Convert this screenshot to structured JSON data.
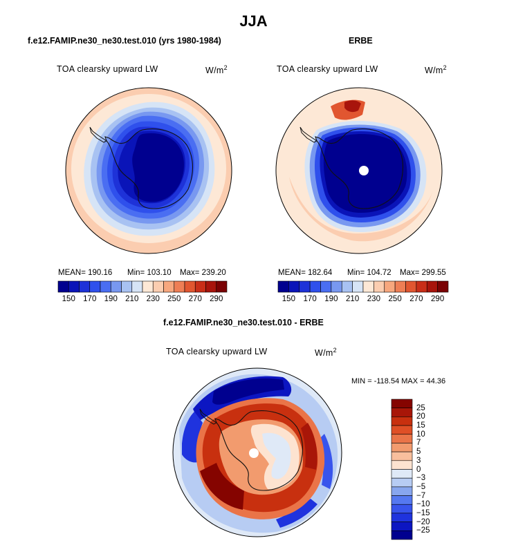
{
  "figure_title": "JJA",
  "variable_label": "TOA clearsky upward LW",
  "units_label": "W/m",
  "units_exponent": "2",
  "colors": {
    "abs_scale": [
      "#00008f",
      "#0a14b8",
      "#1e32d8",
      "#2f50ec",
      "#4a6ef2",
      "#7898f0",
      "#a8c2f2",
      "#d6e4f6",
      "#fde8d6",
      "#fbcdb0",
      "#f7a77e",
      "#ee7e55",
      "#e15630",
      "#c92e18",
      "#a8140c",
      "#7a0204"
    ],
    "diff_scale": [
      "#00008f",
      "#0c16c2",
      "#1f33de",
      "#3854ec",
      "#5578f0",
      "#88a6ee",
      "#b7ccf3",
      "#dfe9f7",
      "#fde3d0",
      "#f8bf9d",
      "#f29b6e",
      "#ea7448",
      "#df4f26",
      "#c8300f",
      "#a81608",
      "#850400"
    ],
    "land_white": "#ffffff",
    "coast": "#111111"
  },
  "chart_data": [
    {
      "type": "heatmap",
      "projection": "south-polar-stereographic",
      "title": "f.e12.FAMIP.ne30_ne30.test.010 (yrs 1980-1984)",
      "variable": "TOA clearsky upward LW",
      "units": "W/m^2",
      "stats": {
        "mean": "190.16",
        "min": "103.10",
        "max": "239.20"
      },
      "stats_text": {
        "mean": "MEAN= 190.16",
        "min": "Min= 103.10",
        "max": "Max= 239.20"
      },
      "colorbar_ticks": [
        "150",
        "170",
        "190",
        "210",
        "230",
        "250",
        "270",
        "290"
      ],
      "colorbar_range": [
        140,
        300
      ],
      "colorbar_step": 10
    },
    {
      "type": "heatmap",
      "projection": "south-polar-stereographic",
      "title": "ERBE",
      "variable": "TOA clearsky upward LW",
      "units": "W/m^2",
      "stats": {
        "mean": "182.64",
        "min": "104.72",
        "max": "299.55"
      },
      "stats_text": {
        "mean": "MEAN= 182.64",
        "min": "Min= 104.72",
        "max": "Max= 299.55"
      },
      "colorbar_ticks": [
        "150",
        "170",
        "190",
        "210",
        "230",
        "250",
        "270",
        "290"
      ],
      "colorbar_range": [
        140,
        300
      ],
      "colorbar_step": 10
    },
    {
      "type": "heatmap",
      "projection": "south-polar-stereographic",
      "title": "f.e12.FAMIP.ne30_ne30.test.010 - ERBE",
      "variable": "TOA clearsky upward LW",
      "units": "W/m^2",
      "stats_text": {
        "minmax": "MIN = -118.54 MAX =  44.36"
      },
      "colorbar_levels": [
        "25",
        "20",
        "15",
        "10",
        "7",
        "5",
        "3",
        "0",
        "−3",
        "−5",
        "−7",
        "−10",
        "−15",
        "−20",
        "−25"
      ]
    }
  ]
}
